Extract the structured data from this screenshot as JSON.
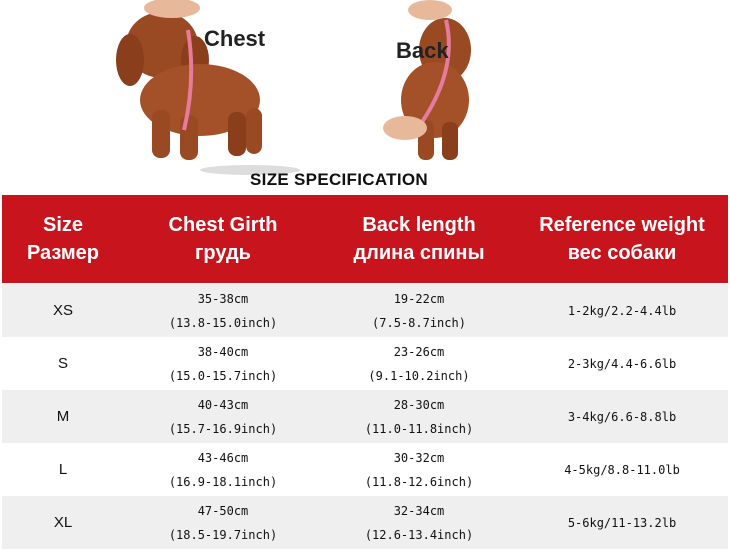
{
  "photos": {
    "left_label": "Chest",
    "right_label": "Back"
  },
  "title": "SIZE SPECIFICATION",
  "colors": {
    "header_bg": "#c8141c",
    "row_alt": "#efefef"
  },
  "header": [
    {
      "en": "Size",
      "ru": "Размер"
    },
    {
      "en": "Chest Girth",
      "ru": "грудь"
    },
    {
      "en": "Back length",
      "ru": "длина спины"
    },
    {
      "en": "Reference weight",
      "ru": "вес собаки"
    }
  ],
  "rows": [
    {
      "size": "XS",
      "chest_cm": "35-38cm",
      "chest_in": "(13.8-15.0inch)",
      "back_cm": "19-22cm",
      "back_in": "(7.5-8.7inch)",
      "weight": "1-2kg/2.2-4.4lb"
    },
    {
      "size": "S",
      "chest_cm": "38-40cm",
      "chest_in": "(15.0-15.7inch)",
      "back_cm": "23-26cm",
      "back_in": "(9.1-10.2inch)",
      "weight": "2-3kg/4.4-6.6lb"
    },
    {
      "size": "M",
      "chest_cm": "40-43cm",
      "chest_in": "(15.7-16.9inch)",
      "back_cm": "28-30cm",
      "back_in": "(11.0-11.8inch)",
      "weight": "3-4kg/6.6-8.8lb"
    },
    {
      "size": "L",
      "chest_cm": "43-46cm",
      "chest_in": "(16.9-18.1inch)",
      "back_cm": "30-32cm",
      "back_in": "(11.8-12.6inch)",
      "weight": "4-5kg/8.8-11.0lb"
    },
    {
      "size": "XL",
      "chest_cm": "47-50cm",
      "chest_in": "(18.5-19.7inch)",
      "back_cm": "32-34cm",
      "back_in": "(12.6-13.4inch)",
      "weight": "5-6kg/11-13.2lb"
    }
  ]
}
